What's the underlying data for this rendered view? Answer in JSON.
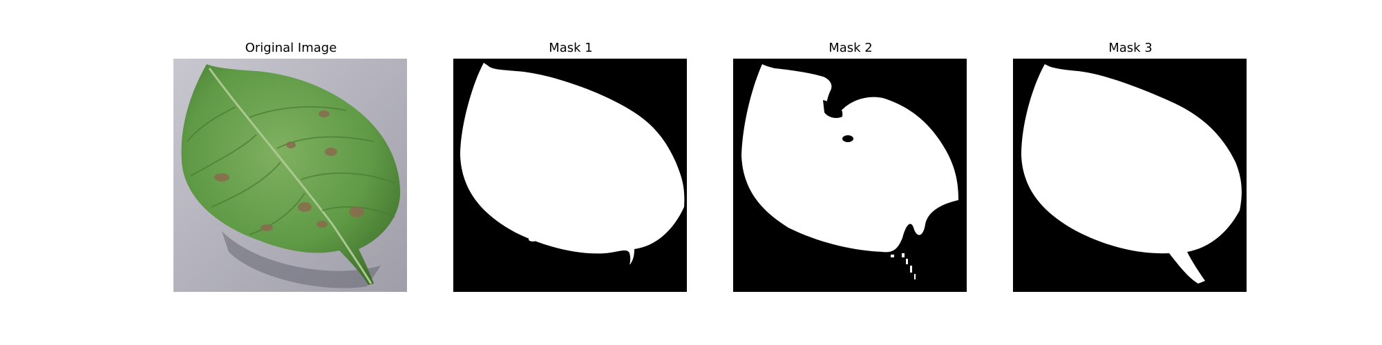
{
  "figure": {
    "panels": [
      {
        "title": "Original Image"
      },
      {
        "title": "Mask 1"
      },
      {
        "title": "Mask 2"
      },
      {
        "title": "Mask 3"
      }
    ]
  },
  "colors": {
    "mask_bg": "#000000",
    "mask_fg": "#ffffff",
    "leaf": "#5f9a45",
    "leaf_dark": "#3f6f2c",
    "surface": "#b4b3bd"
  }
}
